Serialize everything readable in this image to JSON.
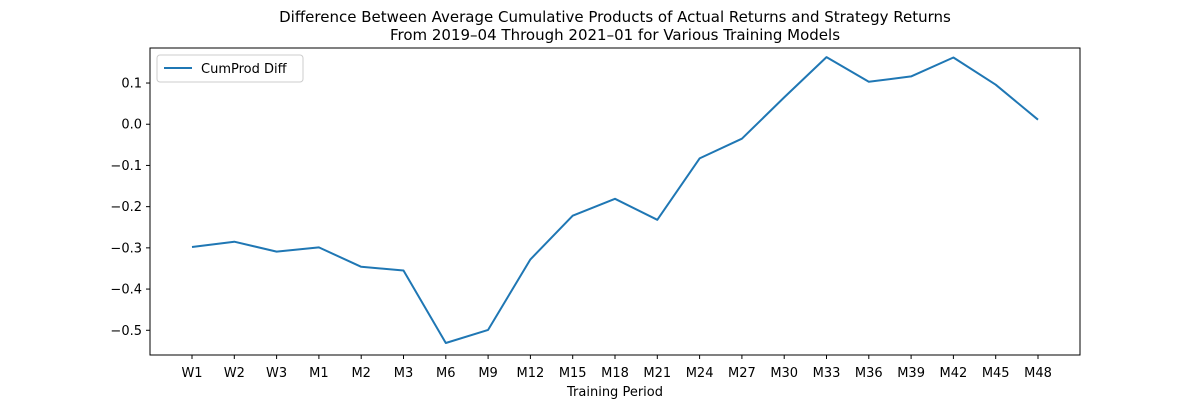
{
  "chart_data": {
    "type": "line",
    "title": "Difference Between Average Cumulative Products of Actual Returns and Strategy Returns",
    "subtitle": "From 2019–04 Through 2021–01 for Various Training Models",
    "xlabel": "Training Period",
    "ylabel": "",
    "categories": [
      "W1",
      "W2",
      "W3",
      "M1",
      "M2",
      "M3",
      "M6",
      "M9",
      "M12",
      "M15",
      "M18",
      "M21",
      "M24",
      "M27",
      "M30",
      "M33",
      "M36",
      "M39",
      "M42",
      "M45",
      "M48"
    ],
    "series": [
      {
        "name": "CumProd Diff",
        "color": "#1f77b4",
        "values": [
          -0.298,
          -0.285,
          -0.309,
          -0.299,
          -0.346,
          -0.355,
          -0.531,
          -0.499,
          -0.328,
          -0.222,
          -0.181,
          -0.232,
          -0.083,
          -0.035,
          0.065,
          0.163,
          0.103,
          0.116,
          0.162,
          0.096,
          0.011
        ]
      }
    ],
    "ylim": [
      -0.56,
      0.185
    ],
    "yticks": [
      -0.5,
      -0.4,
      -0.3,
      -0.2,
      -0.1,
      0.0,
      0.1
    ],
    "ytick_labels": [
      "−0.5",
      "−0.4",
      "−0.3",
      "−0.2",
      "−0.1",
      "0.0",
      "0.1"
    ],
    "grid": false,
    "legend_placement": "top-left"
  }
}
